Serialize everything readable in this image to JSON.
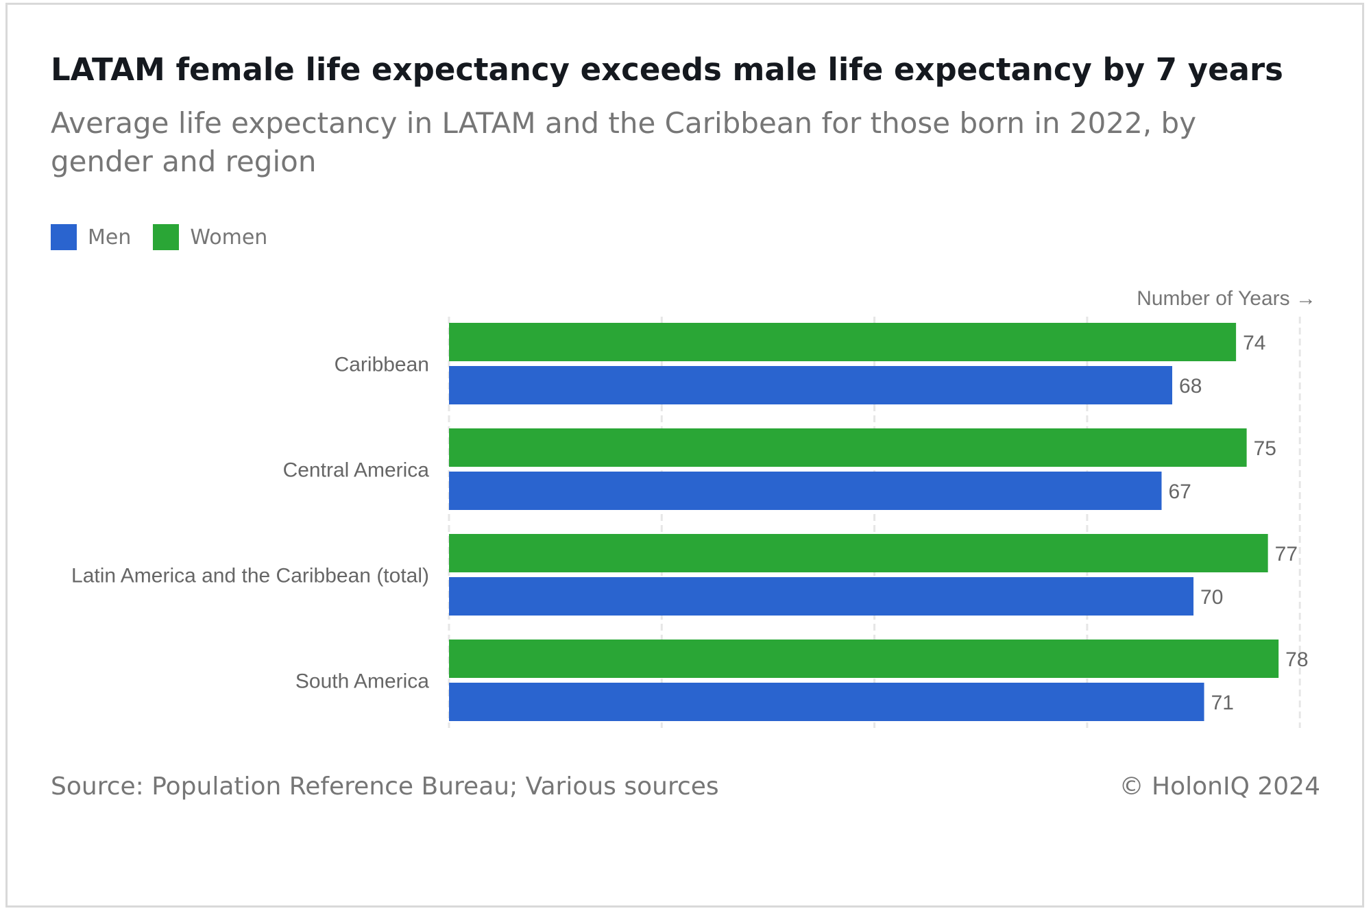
{
  "header": {
    "title": "LATAM female life expectancy exceeds male life expectancy by 7 years",
    "subtitle": "Average life expectancy in LATAM and the Caribbean for those born in 2022, by gender and region"
  },
  "legend": {
    "items": [
      {
        "label": "Men",
        "color": "#2a64cf"
      },
      {
        "label": "Women",
        "color": "#2aa636"
      }
    ]
  },
  "footer": {
    "source": "Source: Population Reference Bureau; Various sources",
    "copyright": "© HolonIQ 2024"
  },
  "chart_data": {
    "type": "bar",
    "orientation": "horizontal",
    "categories": [
      "Caribbean",
      "Central America",
      "Latin America and the Caribbean (total)",
      "South America"
    ],
    "series": [
      {
        "name": "Women",
        "color": "#2aa636",
        "values": [
          74,
          75,
          77,
          78
        ]
      },
      {
        "name": "Men",
        "color": "#2a64cf",
        "values": [
          68,
          67,
          70,
          71
        ]
      }
    ],
    "xlabel": "Number of Years →",
    "xlim": [
      0,
      80
    ],
    "grid": true,
    "data_labels": true,
    "legend_position": "top-left"
  }
}
